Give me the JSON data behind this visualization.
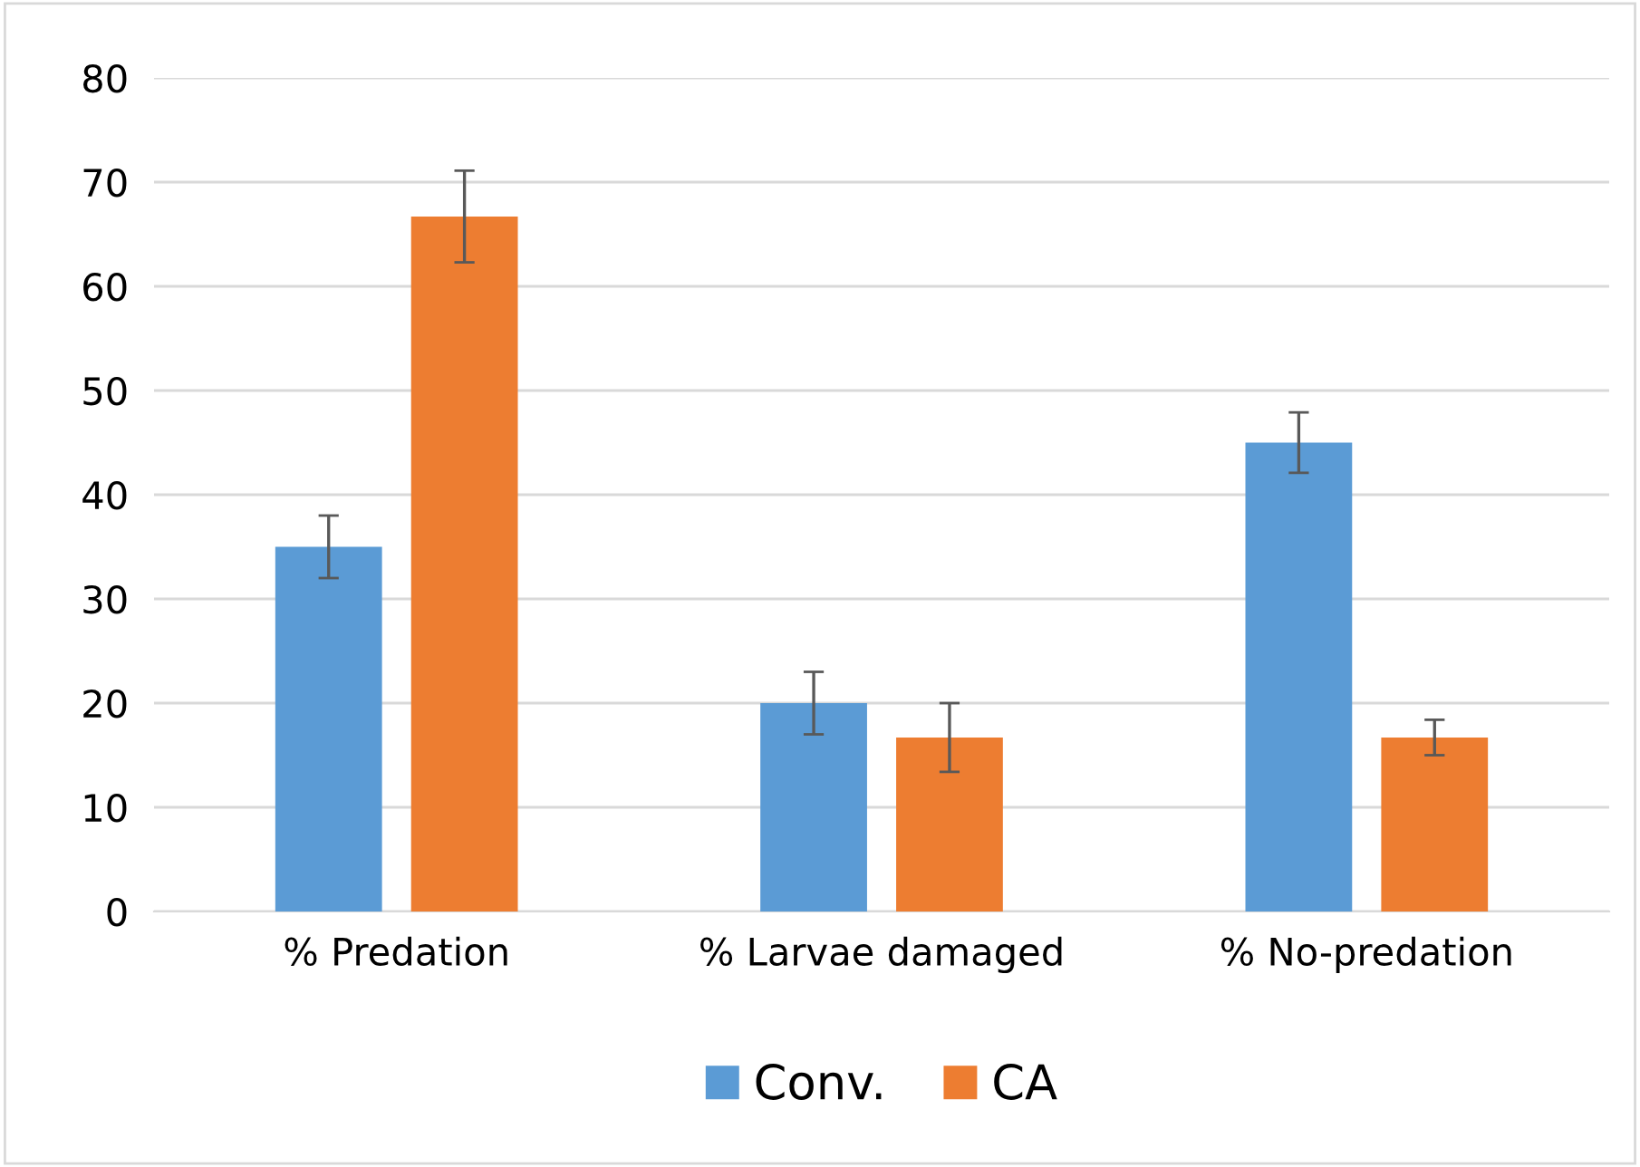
{
  "chart_data": {
    "type": "bar",
    "categories": [
      "% Predation",
      "% Larvae damaged",
      "% No-predation"
    ],
    "series": [
      {
        "name": "Conv.",
        "color": "#5b9bd5",
        "values": [
          35,
          20,
          45
        ],
        "errors": [
          3,
          3,
          2.9
        ]
      },
      {
        "name": "CA",
        "color": "#ed7d31",
        "values": [
          66.7,
          16.7,
          16.7
        ],
        "errors": [
          4.4,
          3.3,
          1.7
        ]
      }
    ],
    "ylim": [
      0,
      80
    ],
    "yticks": [
      0,
      10,
      20,
      30,
      40,
      50,
      60,
      70,
      80
    ],
    "grid": "y",
    "legend": "bottom"
  }
}
